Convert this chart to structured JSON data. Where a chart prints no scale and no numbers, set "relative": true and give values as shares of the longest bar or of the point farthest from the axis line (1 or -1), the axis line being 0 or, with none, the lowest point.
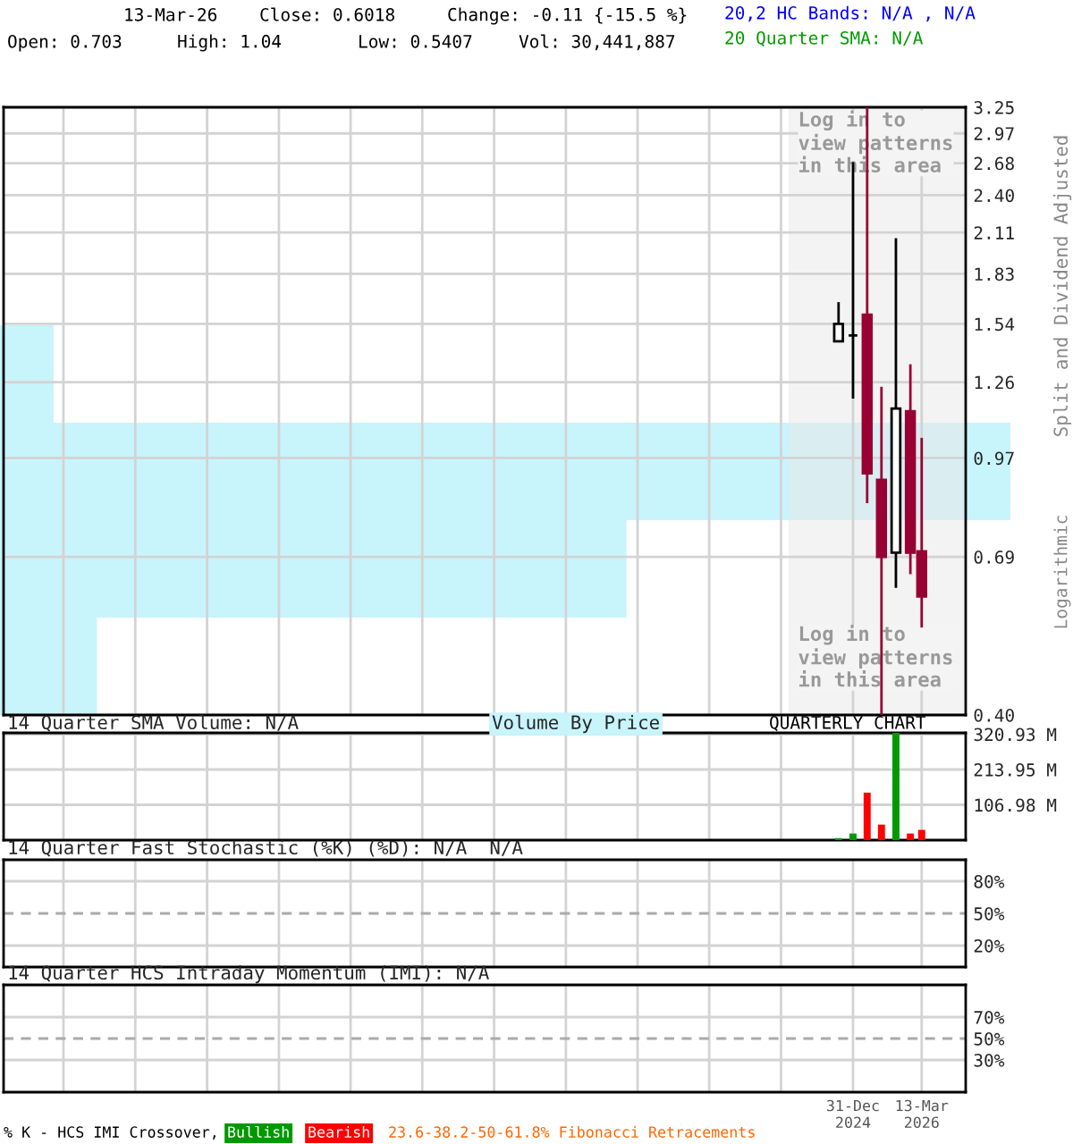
{
  "chart_data": [
    {
      "type": "candlestick",
      "ylabel": "Split and Dividend Adjusted",
      "annotations": [
        "13-Mar-26",
        "Close: 0.6018",
        "Change: -0.11 {-15.5 %}",
        "20,2 HC Bands: N/A , N/A",
        "Open: 0.703",
        "High: 1.04",
        "Low: 0.5407",
        "Vol: 30,441,887",
        "20 Quarter SMA: N/A",
        "Logarithmic"
      ],
      "x": [
        "2024-09-30",
        "2024-12-31",
        "2025-03-31",
        "2025-06-30",
        "2025-09-30",
        "2025-12-31",
        "2026-03-13"
      ],
      "ohlc": [
        [
          1.45,
          1.66,
          1.45,
          1.54
        ],
        [
          1.48,
          2.69,
          1.19,
          1.48
        ],
        [
          1.59,
          3.25,
          0.83,
          0.92
        ],
        [
          0.9,
          1.24,
          0.4,
          0.69
        ],
        [
          0.7,
          2.07,
          0.62,
          1.15
        ],
        [
          1.14,
          1.34,
          0.65,
          0.7
        ],
        [
          0.703,
          1.04,
          0.5407,
          0.6018
        ]
      ],
      "colors": [
        "#000000",
        "#000000",
        "#990033",
        "#990033",
        "#000000",
        "#990033",
        "#990033"
      ],
      "log": true,
      "ylim": [
        0.4,
        3.25
      ],
      "yticks": [
        {
          "value": 0.4,
          "label": "0.40"
        },
        0.69,
        0.97,
        1.26,
        1.54,
        1.83,
        2.11,
        {
          "value": 2.4,
          "label": "2.40"
        },
        2.68,
        2.97,
        3.25
      ],
      "xlim": [
        "2010-03-15",
        "2026-12-18"
      ],
      "xticks": [
        {
          "value": "2011-03-31",
          "label": null
        },
        {
          "value": "2012-06-30",
          "label": null
        },
        {
          "value": "2013-09-30",
          "label": null
        },
        {
          "value": "2014-12-31",
          "label": null
        },
        {
          "value": "2016-03-31",
          "label": null
        },
        {
          "value": "2017-06-30",
          "label": null
        },
        {
          "value": "2018-09-30",
          "label": null
        },
        {
          "value": "2019-12-31",
          "label": null
        },
        {
          "value": "2021-03-31",
          "label": null
        },
        {
          "value": "2022-06-30",
          "label": null
        },
        {
          "value": "2023-09-30",
          "label": null
        },
        {
          "value": "2024-12-31",
          "label": null
        },
        {
          "value": "2026-03-13",
          "label": null
        }
      ],
      "bands": [
        {
          "axis": "x",
          "from": "2023-11-17",
          "to": "2026-12-18",
          "label": "Log in to\nview patterns\nin this area",
          "color": "#e9e9e9"
        }
      ],
      "grid": true,
      "tick_labels": "y"
    },
    {
      "type": "bar",
      "title": "Volume By Price",
      "orientation": "horizontal",
      "relative": true,
      "categories": [
        null,
        null,
        null,
        null
      ],
      "values": [
        0.053,
        1,
        0.62,
        0.096
      ],
      "color": "#c8f4fc"
    },
    {
      "type": "bar",
      "title": "14 Quarter SMA Volume: N/A",
      "annotations": [
        "QUARTERLY CHART"
      ],
      "x": [
        "2024-09-30",
        "2024-12-31",
        "2025-03-31",
        "2025-06-30",
        "2025-09-30",
        "2025-12-31",
        "2026-03-13"
      ],
      "values": [
        6,
        20,
        144,
        47,
        325,
        20,
        31
      ],
      "colors": [
        "#009900",
        "#009900",
        "#ff0000",
        "#ff0000",
        "#009900",
        "#ff0000",
        "#ff0000"
      ],
      "ylim": [
        0,
        325
      ],
      "yticks": [
        {
          "value": 106.98,
          "label": "106.98 M"
        },
        {
          "value": 213.95,
          "label": "213.95 M"
        },
        {
          "value": 320.93,
          "label": "320.93 M"
        }
      ],
      "xlim": [
        "2010-03-15",
        "2026-12-18"
      ],
      "xticks": [
        {
          "value": "2011-03-31",
          "label": null
        },
        {
          "value": "2012-06-30",
          "label": null
        },
        {
          "value": "2013-09-30",
          "label": null
        },
        {
          "value": "2014-12-31",
          "label": null
        },
        {
          "value": "2016-03-31",
          "label": null
        },
        {
          "value": "2017-06-30",
          "label": null
        },
        {
          "value": "2018-09-30",
          "label": null
        },
        {
          "value": "2019-12-31",
          "label": null
        },
        {
          "value": "2021-03-31",
          "label": null
        },
        {
          "value": "2022-06-30",
          "label": null
        },
        {
          "value": "2023-09-30",
          "label": null
        },
        {
          "value": "2024-12-31",
          "label": null
        },
        {
          "value": "2026-03-13",
          "label": null
        }
      ],
      "grid": true,
      "tick_labels": "y"
    },
    {
      "type": "line",
      "title": "14 Quarter Fast Stochastic (%K) (%D): N/A  N/A",
      "ylim": [
        0,
        100
      ],
      "yticks": [
        {
          "value": 20,
          "label": "20%"
        },
        {
          "value": 50,
          "label": "50%"
        },
        {
          "value": 80,
          "label": "80%"
        }
      ],
      "xlim": [
        "2010-03-15",
        "2026-12-18"
      ],
      "xticks": [
        {
          "value": "2011-03-31",
          "label": null
        },
        {
          "value": "2012-06-30",
          "label": null
        },
        {
          "value": "2013-09-30",
          "label": null
        },
        {
          "value": "2014-12-31",
          "label": null
        },
        {
          "value": "2016-03-31",
          "label": null
        },
        {
          "value": "2017-06-30",
          "label": null
        },
        {
          "value": "2018-09-30",
          "label": null
        },
        {
          "value": "2019-12-31",
          "label": null
        },
        {
          "value": "2021-03-31",
          "label": null
        },
        {
          "value": "2022-06-30",
          "label": null
        },
        {
          "value": "2023-09-30",
          "label": null
        },
        {
          "value": "2024-12-31",
          "label": null
        },
        {
          "value": "2026-03-13",
          "label": null
        }
      ],
      "ref_lines": [
        {
          "axis": "y",
          "value": 50,
          "line_style": "dashed",
          "color": "#aaaaaa"
        }
      ],
      "grid": true,
      "tick_labels": "y"
    },
    {
      "type": "line",
      "title": "14 Quarter HCS Intraday Momentum (IMI): N/A",
      "annotations": [
        "% K - HCS IMI Crossover,",
        "Bullish",
        "Bearish",
        "23.6-38.2-50-61.8% Fibonacci Retracements"
      ],
      "ylim": [
        0,
        100
      ],
      "yticks": [
        {
          "value": 30,
          "label": "30%"
        },
        {
          "value": 50,
          "label": "50%"
        },
        {
          "value": 70,
          "label": "70%"
        }
      ],
      "xlim": [
        "2010-03-15",
        "2026-12-18"
      ],
      "xticks": [
        {
          "value": "2011-03-31",
          "label": null
        },
        {
          "value": "2012-06-30",
          "label": null
        },
        {
          "value": "2013-09-30",
          "label": null
        },
        {
          "value": "2014-12-31",
          "label": null
        },
        {
          "value": "2016-03-31",
          "label": null
        },
        {
          "value": "2017-06-30",
          "label": null
        },
        {
          "value": "2018-09-30",
          "label": null
        },
        {
          "value": "2019-12-31",
          "label": null
        },
        {
          "value": "2021-03-31",
          "label": null
        },
        {
          "value": "2022-06-30",
          "label": null
        },
        {
          "value": "2023-09-30",
          "label": null
        },
        {
          "value": "2024-12-31",
          "label": "31-Dec\n2024"
        },
        {
          "value": "2026-03-13",
          "label": "13-Mar\n2026"
        }
      ],
      "ref_lines": [
        {
          "axis": "y",
          "value": 50,
          "line_style": "dashed",
          "color": "#aaaaaa"
        }
      ],
      "grid": true
    }
  ]
}
